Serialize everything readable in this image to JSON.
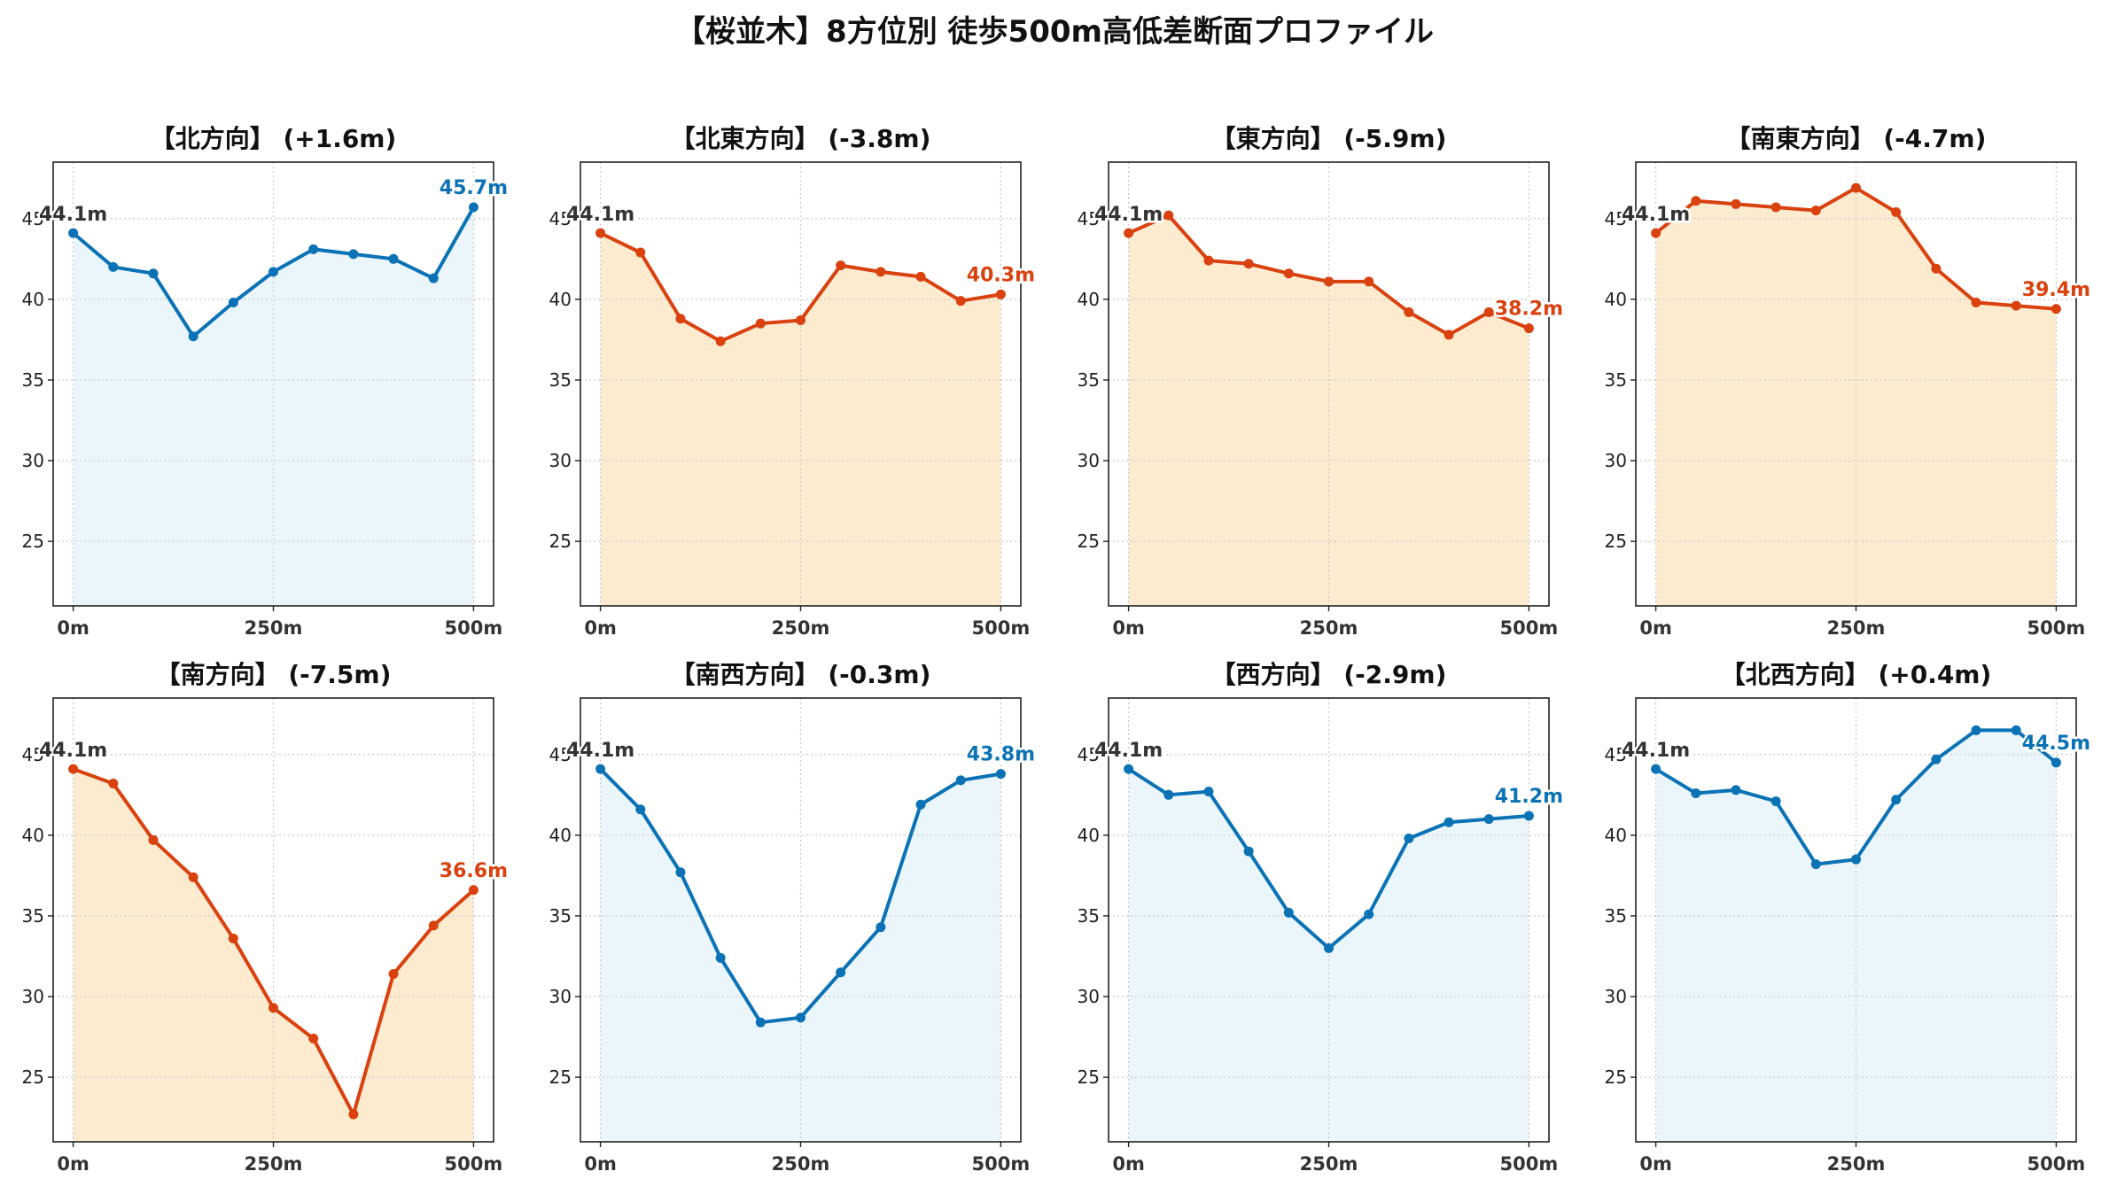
{
  "title": "【桜並木】8方位別 徒歩500m高低差断面プロファイル",
  "colors": {
    "up_line": "#0a72b5",
    "up_fill": "#eaf6fc",
    "down_line": "#d9410f",
    "down_fill": "#fdebd0",
    "start_label": "#333333"
  },
  "chart_data": [
    {
      "type": "line",
      "title": "【北方向】 (+1.6m)",
      "trend": "up",
      "x": [
        0,
        50,
        100,
        150,
        200,
        250,
        300,
        350,
        400,
        450,
        500
      ],
      "values": [
        44.1,
        42.0,
        41.6,
        37.7,
        39.8,
        41.7,
        43.1,
        42.8,
        42.5,
        41.3,
        45.7
      ],
      "start_label": "44.1m",
      "end_label": "45.7m",
      "ylim": [
        21,
        48.5
      ],
      "yticks": [
        "25",
        "30",
        "35",
        "40",
        "45"
      ],
      "xticks": [
        "0m",
        "250m",
        "500m"
      ]
    },
    {
      "type": "line",
      "title": "【北東方向】 (-3.8m)",
      "trend": "down",
      "x": [
        0,
        50,
        100,
        150,
        200,
        250,
        300,
        350,
        400,
        450,
        500
      ],
      "values": [
        44.1,
        42.9,
        38.8,
        37.4,
        38.5,
        38.7,
        42.1,
        41.7,
        41.4,
        39.9,
        40.3
      ],
      "start_label": "44.1m",
      "end_label": "40.3m",
      "ylim": [
        21,
        48.5
      ],
      "yticks": [
        "25",
        "30",
        "35",
        "40",
        "45"
      ],
      "xticks": [
        "0m",
        "250m",
        "500m"
      ]
    },
    {
      "type": "line",
      "title": "【東方向】 (-5.9m)",
      "trend": "down",
      "x": [
        0,
        50,
        100,
        150,
        200,
        250,
        300,
        350,
        400,
        450,
        500
      ],
      "values": [
        44.1,
        45.2,
        42.4,
        42.2,
        41.6,
        41.1,
        41.1,
        39.2,
        37.8,
        39.2,
        38.2
      ],
      "start_label": "44.1m",
      "end_label": "38.2m",
      "ylim": [
        21,
        48.5
      ],
      "yticks": [
        "25",
        "30",
        "35",
        "40",
        "45"
      ],
      "xticks": [
        "0m",
        "250m",
        "500m"
      ]
    },
    {
      "type": "line",
      "title": "【南東方向】 (-4.7m)",
      "trend": "down",
      "x": [
        0,
        50,
        100,
        150,
        200,
        250,
        300,
        350,
        400,
        450,
        500
      ],
      "values": [
        44.1,
        46.1,
        45.9,
        45.7,
        45.5,
        46.9,
        45.4,
        41.9,
        39.8,
        39.6,
        39.4
      ],
      "start_label": "44.1m",
      "end_label": "39.4m",
      "ylim": [
        21,
        48.5
      ],
      "yticks": [
        "25",
        "30",
        "35",
        "40",
        "45"
      ],
      "xticks": [
        "0m",
        "250m",
        "500m"
      ]
    },
    {
      "type": "line",
      "title": "【南方向】 (-7.5m)",
      "trend": "down",
      "x": [
        0,
        50,
        100,
        150,
        200,
        250,
        300,
        350,
        400,
        450,
        500
      ],
      "values": [
        44.1,
        43.2,
        39.7,
        37.4,
        33.6,
        29.3,
        27.4,
        22.7,
        31.4,
        34.4,
        36.6
      ],
      "start_label": "44.1m",
      "end_label": "36.6m",
      "ylim": [
        21,
        48.5
      ],
      "yticks": [
        "25",
        "30",
        "35",
        "40",
        "45"
      ],
      "xticks": [
        "0m",
        "250m",
        "500m"
      ]
    },
    {
      "type": "line",
      "title": "【南西方向】 (-0.3m)",
      "trend": "up",
      "x": [
        0,
        50,
        100,
        150,
        200,
        250,
        300,
        350,
        400,
        450,
        500
      ],
      "values": [
        44.1,
        41.6,
        37.7,
        32.4,
        28.4,
        28.7,
        31.5,
        34.3,
        41.9,
        43.4,
        43.8
      ],
      "start_label": "44.1m",
      "end_label": "43.8m",
      "ylim": [
        21,
        48.5
      ],
      "yticks": [
        "25",
        "30",
        "35",
        "40",
        "45"
      ],
      "xticks": [
        "0m",
        "250m",
        "500m"
      ]
    },
    {
      "type": "line",
      "title": "【西方向】 (-2.9m)",
      "trend": "up",
      "x": [
        0,
        50,
        100,
        150,
        200,
        250,
        300,
        350,
        400,
        450,
        500
      ],
      "values": [
        44.1,
        42.5,
        42.7,
        39.0,
        35.2,
        33.0,
        35.1,
        39.8,
        40.8,
        41.0,
        41.2
      ],
      "start_label": "44.1m",
      "end_label": "41.2m",
      "ylim": [
        21,
        48.5
      ],
      "yticks": [
        "25",
        "30",
        "35",
        "40",
        "45"
      ],
      "xticks": [
        "0m",
        "250m",
        "500m"
      ]
    },
    {
      "type": "line",
      "title": "【北西方向】 (+0.4m)",
      "trend": "up",
      "x": [
        0,
        50,
        100,
        150,
        200,
        250,
        300,
        350,
        400,
        450,
        500
      ],
      "values": [
        44.1,
        42.6,
        42.8,
        42.1,
        38.2,
        38.5,
        42.2,
        44.7,
        46.5,
        46.5,
        44.5
      ],
      "start_label": "44.1m",
      "end_label": "44.5m",
      "ylim": [
        21,
        48.5
      ],
      "yticks": [
        "25",
        "30",
        "35",
        "40",
        "45"
      ],
      "xticks": [
        "0m",
        "250m",
        "500m"
      ]
    }
  ]
}
